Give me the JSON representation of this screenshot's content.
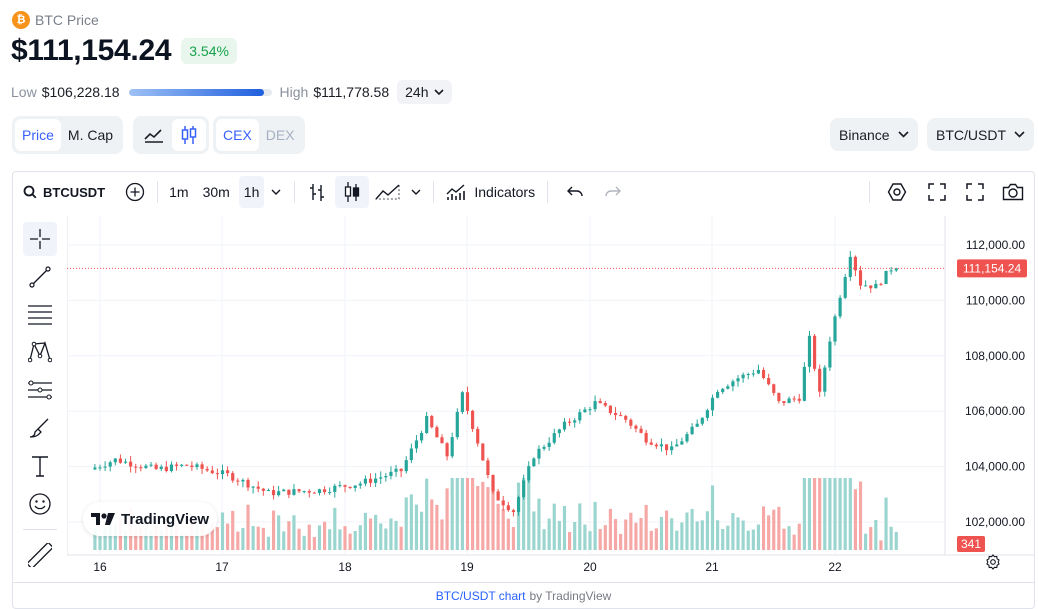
{
  "header": {
    "coin_symbol": "₿",
    "coin_name": "BTC Price",
    "price": "$111,154.24",
    "change": "3.54%",
    "low_label": "Low",
    "low_value": "$106,228.18",
    "high_label": "High",
    "high_value": "$111,778.58",
    "range_position": 0.95,
    "period": "24h"
  },
  "controls": {
    "metric_tabs": [
      "Price",
      "M. Cap"
    ],
    "market_tabs": [
      "CEX",
      "DEX"
    ],
    "exchange": "Binance",
    "pair": "BTC/USDT"
  },
  "toolbar": {
    "symbol": "BTCUSDT",
    "timeframes": [
      "1m",
      "30m",
      "1h"
    ],
    "active_timeframe": "1h",
    "indicators_label": "Indicators"
  },
  "watermark": "TradingView",
  "footer": {
    "link": "BTC/USDT chart",
    "by": "by TradingView"
  },
  "colors": {
    "up": "#26a69a",
    "down": "#ef5350",
    "accent": "#3861fb",
    "vol_up": "#9bd5cf",
    "vol_down": "#f5a8a6"
  },
  "chart_data": {
    "type": "candlestick",
    "title": "",
    "xlabel": "",
    "ylabel": "",
    "ylim": [
      101400,
      112600
    ],
    "y_ticks": [
      "112,000.00",
      "110,000.00",
      "108,000.00",
      "106,000.00",
      "104,000.00",
      "102,000.00"
    ],
    "y_tick_values": [
      112000,
      110000,
      108000,
      106000,
      104000,
      102000
    ],
    "x_ticks": [
      "16",
      "17",
      "18",
      "19",
      "20",
      "21",
      "22"
    ],
    "last_price": 111154.24,
    "last_price_label": "111,154.24",
    "last_volume_label": "341",
    "grid": true,
    "series": [
      {
        "name": "BTCUSDT",
        "key_prices": [
          {
            "day": "15",
            "hour": 23,
            "price": 103900
          },
          {
            "day": "16",
            "hour": 4,
            "price": 104250
          },
          {
            "day": "16",
            "hour": 12,
            "price": 103900
          },
          {
            "day": "16",
            "hour": 18,
            "price": 104050
          },
          {
            "day": "17",
            "hour": 2,
            "price": 103700
          },
          {
            "day": "17",
            "hour": 10,
            "price": 103050
          },
          {
            "day": "17",
            "hour": 20,
            "price": 103150
          },
          {
            "day": "18",
            "hour": 4,
            "price": 103400
          },
          {
            "day": "18",
            "hour": 12,
            "price": 103850
          },
          {
            "day": "18",
            "hour": 17,
            "price": 105700
          },
          {
            "day": "18",
            "hour": 21,
            "price": 104400
          },
          {
            "day": "19",
            "hour": 0,
            "price": 106600
          },
          {
            "day": "19",
            "hour": 3,
            "price": 104900
          },
          {
            "day": "19",
            "hour": 6,
            "price": 103000
          },
          {
            "day": "19",
            "hour": 10,
            "price": 102400
          },
          {
            "day": "19",
            "hour": 14,
            "price": 104400
          },
          {
            "day": "19",
            "hour": 20,
            "price": 105500
          },
          {
            "day": "20",
            "hour": 2,
            "price": 106300
          },
          {
            "day": "20",
            "hour": 8,
            "price": 105700
          },
          {
            "day": "20",
            "hour": 12,
            "price": 105000
          },
          {
            "day": "20",
            "hour": 17,
            "price": 104600
          },
          {
            "day": "20",
            "hour": 22,
            "price": 105500
          },
          {
            "day": "21",
            "hour": 2,
            "price": 106800
          },
          {
            "day": "21",
            "hour": 6,
            "price": 107200
          },
          {
            "day": "21",
            "hour": 10,
            "price": 107500
          },
          {
            "day": "21",
            "hour": 14,
            "price": 106300
          },
          {
            "day": "21",
            "hour": 18,
            "price": 106500
          },
          {
            "day": "21",
            "hour": 20,
            "price": 108600
          },
          {
            "day": "21",
            "hour": 22,
            "price": 106600
          },
          {
            "day": "22",
            "hour": 0,
            "price": 108600
          },
          {
            "day": "22",
            "hour": 2,
            "price": 110200
          },
          {
            "day": "22",
            "hour": 4,
            "price": 111700
          },
          {
            "day": "22",
            "hour": 6,
            "price": 110600
          },
          {
            "day": "22",
            "hour": 9,
            "price": 110500
          },
          {
            "day": "22",
            "hour": 12,
            "price": 111154
          }
        ]
      }
    ]
  }
}
